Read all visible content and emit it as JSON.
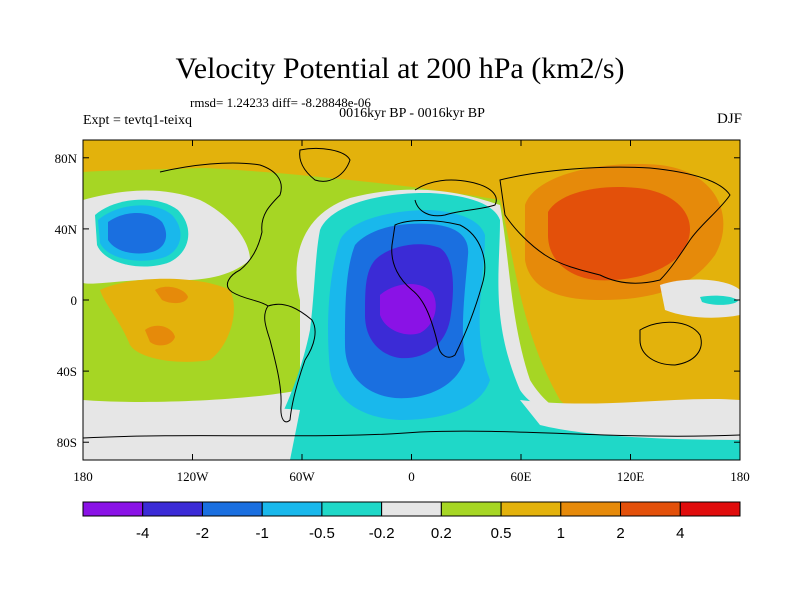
{
  "header": {
    "title": "Velocity Potential at 200 hPa (km2/s)",
    "stats": "rmsd= 1.24233 diff= -8.28848e-06",
    "period": "0016kyr BP - 0016kyr BP",
    "experiment": "Expt = tevtq1-teixq",
    "season": "DJF"
  },
  "map": {
    "lon_range": [
      -180,
      180
    ],
    "lat_range": [
      -90,
      90
    ],
    "x_ticks": [
      {
        "value": -180,
        "label": "180"
      },
      {
        "value": -120,
        "label": "120W"
      },
      {
        "value": -60,
        "label": "60W"
      },
      {
        "value": 0,
        "label": "0"
      },
      {
        "value": 60,
        "label": "60E"
      },
      {
        "value": 120,
        "label": "120E"
      },
      {
        "value": 180,
        "label": "180"
      }
    ],
    "y_ticks": [
      {
        "value": 80,
        "label": "80N"
      },
      {
        "value": 40,
        "label": "40N"
      },
      {
        "value": 0,
        "label": "0"
      },
      {
        "value": -40,
        "label": "40S"
      },
      {
        "value": -80,
        "label": "80S"
      }
    ]
  },
  "colorbar": {
    "colors": [
      "#8a12e6",
      "#3b2bd6",
      "#1a6fe0",
      "#19b8ec",
      "#1fd8c8",
      "#e6e6e6",
      "#a6d624",
      "#e3b20c",
      "#e68a0a",
      "#e3500a",
      "#e00c0c"
    ],
    "labels": [
      "-4",
      "-2",
      "-1",
      "-0.5",
      "-0.2",
      "0.2",
      "0.5",
      "1",
      "2",
      "4"
    ]
  }
}
